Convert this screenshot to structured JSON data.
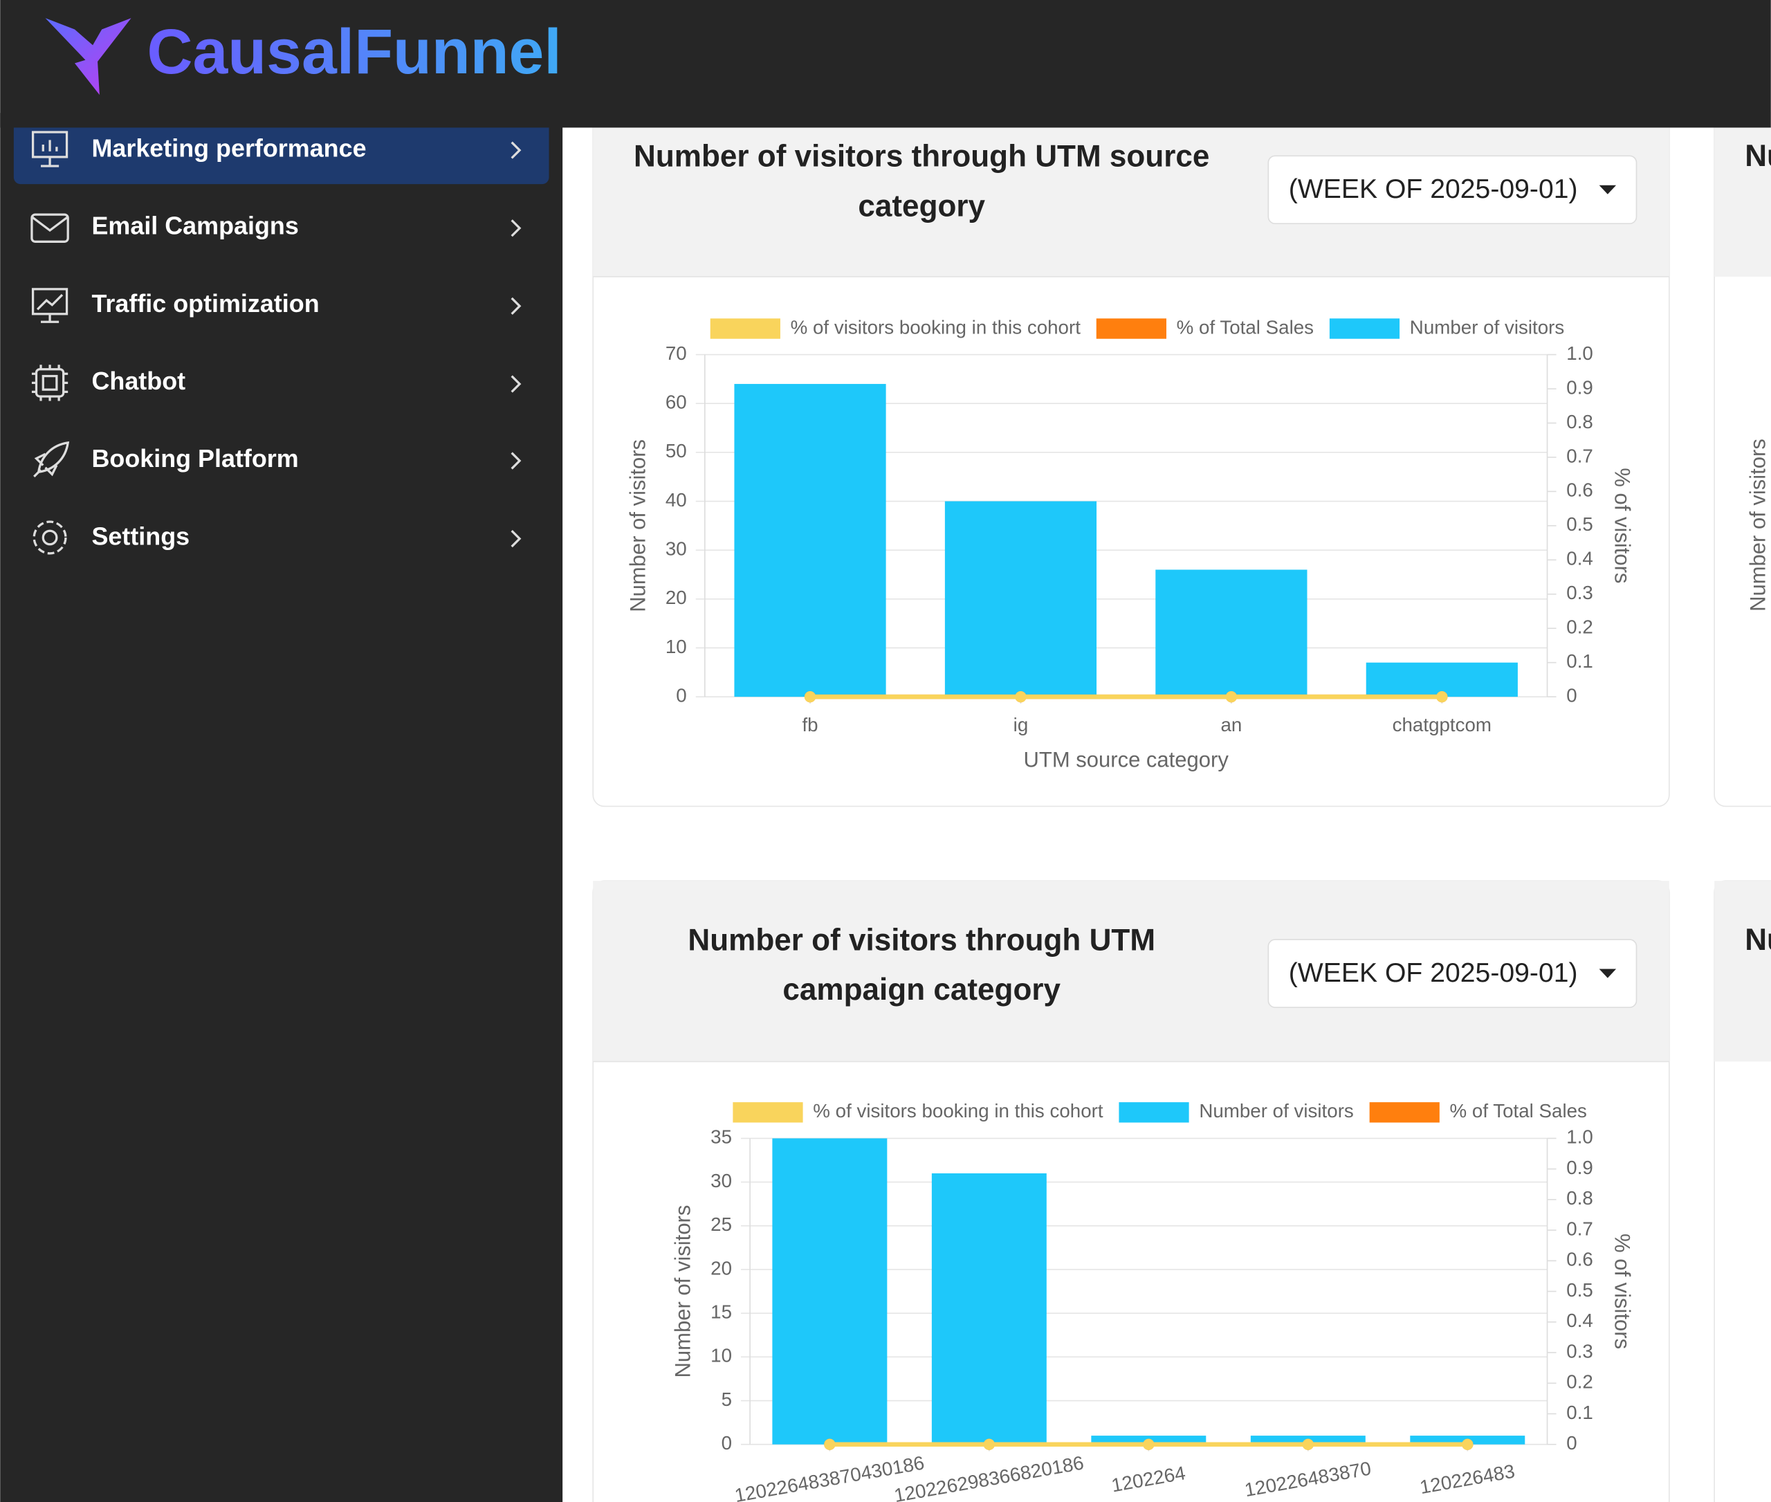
{
  "header": {
    "brand": "CausalFunnel"
  },
  "sidebar": {
    "items": [
      "Marketing performance",
      "Email Campaigns",
      "Traffic optimization",
      "Chatbot",
      "Booking Platform",
      "Settings"
    ]
  },
  "chart_data": [
    {
      "type": "bar",
      "title": "Number of visitors through UTM source category",
      "filter": "(WEEK OF 2025-09-01)",
      "categories": [
        "fb",
        "ig",
        "an",
        "chatgptcom"
      ],
      "series": [
        {
          "name": "% of visitors booking in this cohort",
          "color": "#f9d45c",
          "type": "line",
          "axis": "y2",
          "values": [
            0,
            0,
            0,
            0
          ]
        },
        {
          "name": "% of Total Sales",
          "color": "#ff7f0e",
          "type": "line",
          "axis": "y2",
          "values": [
            0,
            0,
            0,
            0
          ]
        },
        {
          "name": "Number of visitors",
          "color": "#1ec8fa",
          "type": "bar",
          "values": [
            64,
            40,
            26,
            7
          ]
        }
      ],
      "xlabel": "UTM source category",
      "ylabel": "Number of visitors",
      "y2label": "% of visitors",
      "ylim": [
        0,
        70
      ],
      "yticks": [
        0,
        10,
        20,
        30,
        40,
        50,
        60,
        70
      ],
      "y2lim": [
        0,
        1
      ],
      "y2ticks": [
        0,
        0.1,
        0.2,
        0.3,
        0.4,
        0.5,
        0.6,
        0.7,
        0.8,
        0.9,
        {
          "value": 1,
          "label": "1.0"
        }
      ],
      "grid": true
    },
    {
      "type": "bar",
      "title": "Number of visitors through UTM campaign category",
      "filter": "(WEEK OF 2025-09-01)",
      "categories": [
        "120226483870430186",
        "120226298366820186",
        "1202264",
        "120226483870",
        "120226483"
      ],
      "series": [
        {
          "name": "% of visitors booking in this cohort",
          "color": "#f9d45c",
          "type": "line",
          "axis": "y2",
          "values": [
            0,
            0,
            0,
            0,
            0
          ]
        },
        {
          "name": "Number of visitors",
          "color": "#1ec8fa",
          "type": "bar",
          "values": [
            35,
            31,
            1,
            1,
            1
          ]
        },
        {
          "name": "% of Total Sales",
          "color": "#ff7f0e",
          "type": "line",
          "axis": "y2",
          "values": [
            0,
            0,
            0,
            0,
            0
          ]
        }
      ],
      "ylabel": "Number of visitors",
      "y2label": "% of visitors",
      "ylim": [
        0,
        35
      ],
      "yticks": [
        0,
        5,
        10,
        15,
        20,
        25,
        30,
        35
      ],
      "y2lim": [
        0,
        1
      ],
      "y2ticks": [
        0,
        0.1,
        0.2,
        0.3,
        0.4,
        0.5,
        0.6,
        0.7,
        0.8,
        0.9,
        {
          "value": 1,
          "label": "1.0"
        }
      ],
      "grid": true
    }
  ],
  "partial_panels": {
    "titles": [
      "Nu",
      "Nu"
    ],
    "axis_label": "Number of visitors"
  }
}
